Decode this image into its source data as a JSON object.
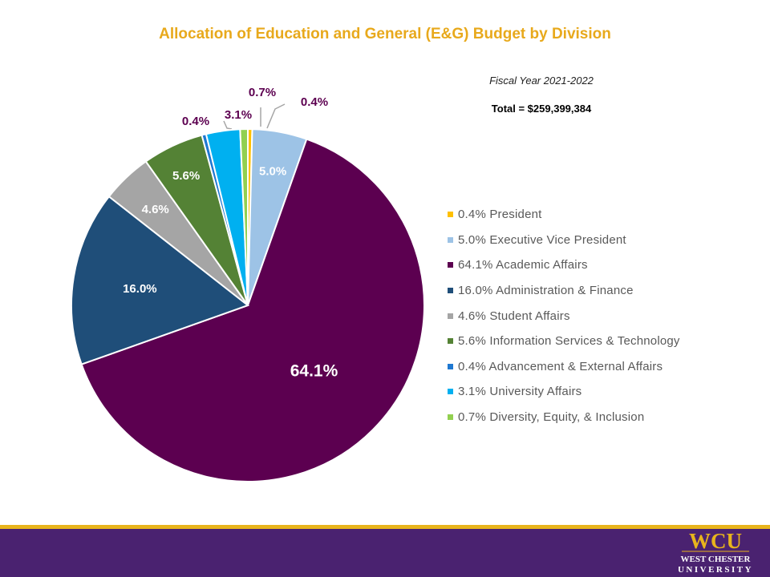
{
  "chart_data": {
    "type": "pie",
    "title": "Allocation of Education and General (E&G) Budget by Division",
    "subtitle": "Fiscal Year 2021-2022",
    "total_text": "Total = $259,399,384",
    "legend_position": "right",
    "slices": [
      {
        "label": "President",
        "value": 0.4,
        "pct_text": "0.4%",
        "legend_text": "0.4% President",
        "color": "#FFC000",
        "label_color": "#5C0050"
      },
      {
        "label": "Executive Vice President",
        "value": 5.0,
        "pct_text": "5.0%",
        "legend_text": "5.0% Executive Vice President",
        "color": "#9DC3E6",
        "label_color": "#ffffff"
      },
      {
        "label": "Academic Affairs",
        "value": 64.1,
        "pct_text": "64.1%",
        "legend_text": "64.1% Academic Affairs",
        "color": "#5C0050",
        "label_color": "#ffffff"
      },
      {
        "label": "Administration & Finance",
        "value": 16.0,
        "pct_text": "16.0%",
        "legend_text": "16.0% Administration & Finance",
        "color": "#1F4E79",
        "label_color": "#ffffff"
      },
      {
        "label": "Student Affairs",
        "value": 4.6,
        "pct_text": "4.6%",
        "legend_text": "4.6% Student Affairs",
        "color": "#A5A5A5",
        "label_color": "#ffffff"
      },
      {
        "label": "Information Services & Technology",
        "value": 5.6,
        "pct_text": "5.6%",
        "legend_text": "5.6% Information Services & Technology",
        "color": "#548235",
        "label_color": "#ffffff"
      },
      {
        "label": "Advancement & External Affairs",
        "value": 0.4,
        "pct_text": "0.4%",
        "legend_text": "0.4% Advancement & External Affairs",
        "color": "#1F78D1",
        "label_color": "#5C0050"
      },
      {
        "label": "University Affairs",
        "value": 3.1,
        "pct_text": "3.1%",
        "legend_text": "3.1% University Affairs",
        "color": "#00B0F0",
        "label_color": "#5C0050"
      },
      {
        "label": "Diversity, Equity, & Inclusion",
        "value": 0.7,
        "pct_text": "0.7%",
        "legend_text": "0.7% Diversity, Equity, & Inclusion",
        "color": "#92D050",
        "label_color": "#5C0050"
      }
    ]
  },
  "footer": {
    "colors": {
      "band": "#4A2270",
      "stripe": "#E8B41C"
    },
    "logo": {
      "wordmark": "WCU",
      "line1": "WEST CHESTER",
      "line2": "UNIVERSITY"
    }
  }
}
